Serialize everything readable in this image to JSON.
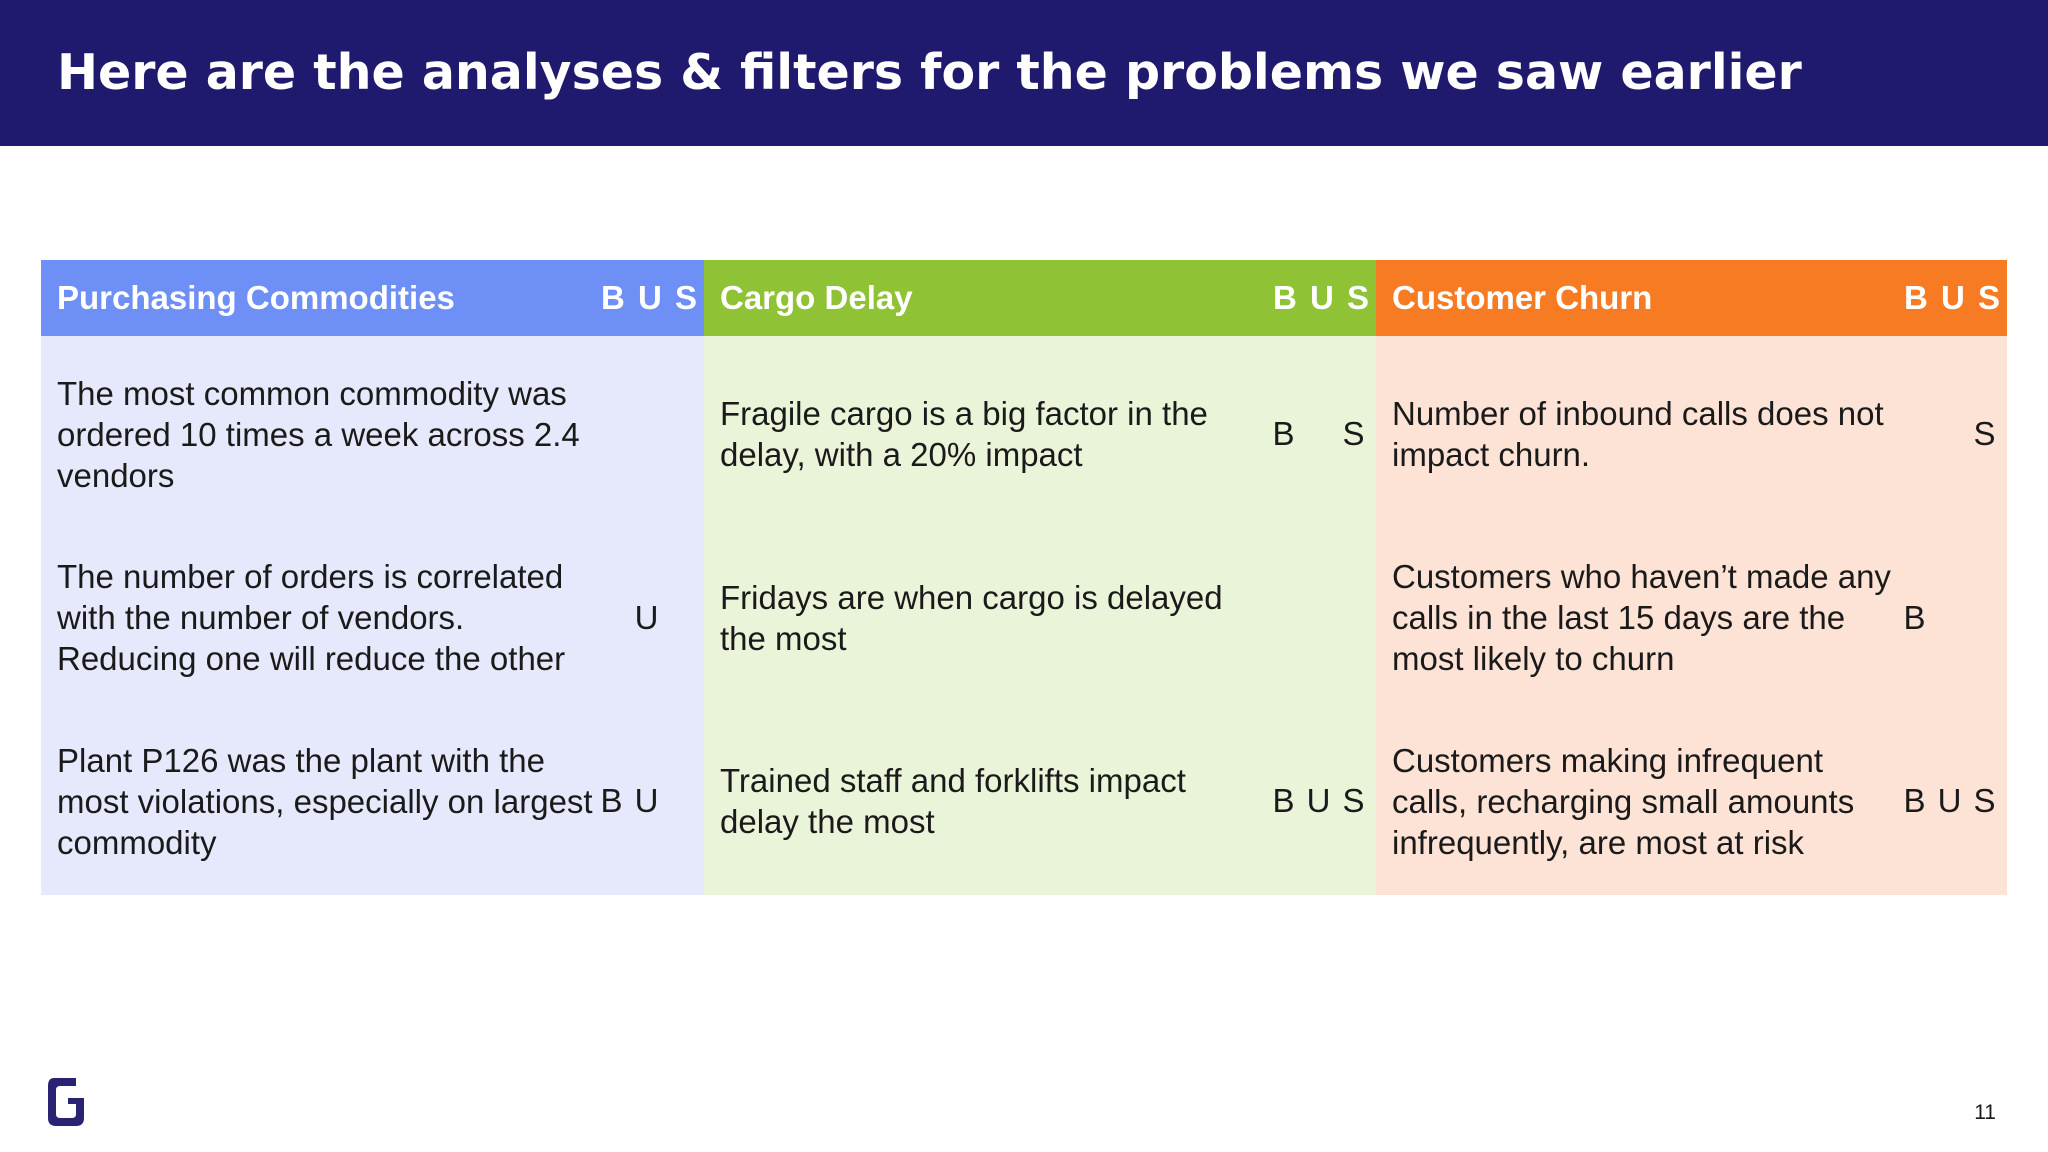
{
  "title": "Here are the analyses & filters for the problems we saw earlier",
  "columns": [
    {
      "header": "Purchasing Commodities",
      "header_tags": "B U S",
      "rows": [
        {
          "text": "The most common commodity was ordered 10 times a week across 2.4 vendors",
          "tags": [
            "",
            "",
            ""
          ]
        },
        {
          "text": "The number of orders is correlated with the number of vendors. Reducing one will reduce the other",
          "tags": [
            "",
            "U",
            ""
          ]
        },
        {
          "text": "Plant P126 was the plant with the most violations, especially on largest commodity",
          "tags": [
            "B",
            "U",
            ""
          ]
        }
      ]
    },
    {
      "header": "Cargo Delay",
      "header_tags": "B U S",
      "rows": [
        {
          "text": "Fragile cargo is a big factor in the delay, with a 20% impact",
          "tags": [
            "B",
            "",
            "S"
          ]
        },
        {
          "text": "Fridays are when cargo is delayed the most",
          "tags": [
            "",
            "",
            ""
          ]
        },
        {
          "text": "Trained staff and forklifts impact delay the most",
          "tags": [
            "B",
            "U",
            "S"
          ]
        }
      ]
    },
    {
      "header": "Customer Churn",
      "header_tags": "B U S",
      "rows": [
        {
          "text": "Number of inbound calls does not impact churn.",
          "tags": [
            "",
            "",
            "S"
          ]
        },
        {
          "text": "Customers who haven’t made any calls in the last 15 days are the most likely to churn",
          "tags": [
            "B",
            "",
            ""
          ]
        },
        {
          "text": "Customers making infrequent calls, recharging small amounts infrequently, are most at risk",
          "tags": [
            "B",
            "U",
            "S"
          ]
        }
      ]
    }
  ],
  "page_number": "11",
  "logo_icon": "g-logo-icon",
  "colors": {
    "title_bar": "#201a6e",
    "purchasing_header": "#6e8ff6",
    "purchasing_body": "#e6e9fb",
    "cargo_header": "#8fc234",
    "cargo_body": "#eaf4d8",
    "churn_header": "#f77b23",
    "churn_body": "#fde3d6",
    "logo": "#2a2273"
  }
}
